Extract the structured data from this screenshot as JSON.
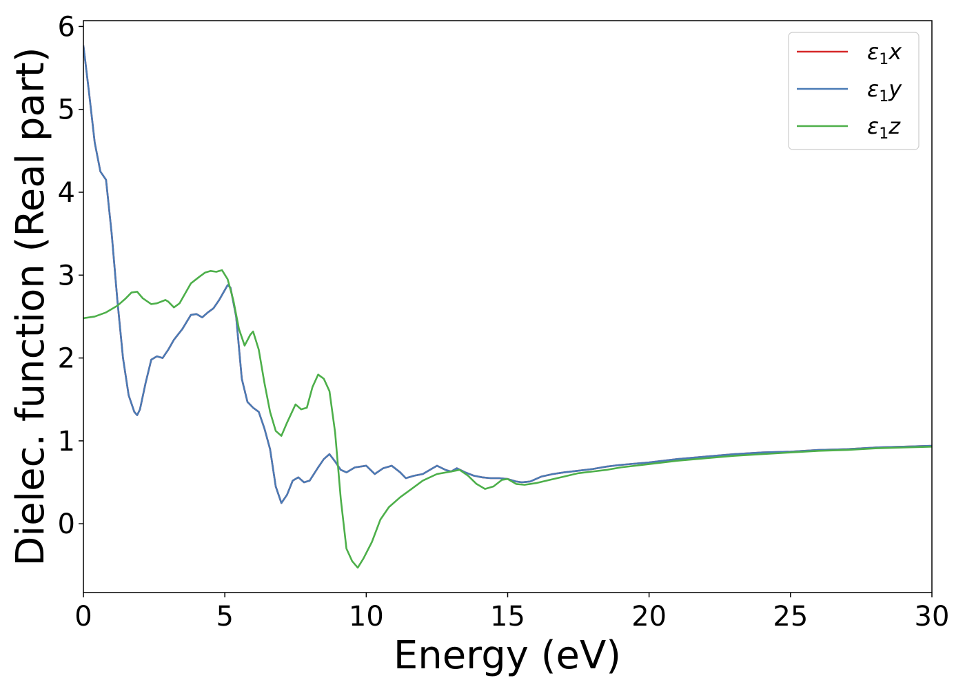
{
  "chart_data": {
    "type": "line",
    "title": "",
    "xlabel": "Energy (eV)",
    "ylabel": "Dielec. function (Real part)",
    "xlim": [
      0,
      30
    ],
    "ylim": [
      -0.83,
      6.07
    ],
    "x_ticks": [
      0,
      5,
      10,
      15,
      20,
      25,
      30
    ],
    "y_ticks": [
      0,
      1,
      2,
      3,
      4,
      5,
      6
    ],
    "grid": false,
    "legend_position": "top-right",
    "series": [
      {
        "name": "ε1x",
        "legend_main": "ε",
        "legend_sub": "1",
        "legend_var": "x",
        "color": "#d62728",
        "points": [
          [
            0,
            5.77
          ],
          [
            0.2,
            5.2
          ],
          [
            0.4,
            4.6
          ],
          [
            0.6,
            4.25
          ],
          [
            0.8,
            4.15
          ],
          [
            1.0,
            3.5
          ],
          [
            1.2,
            2.7
          ],
          [
            1.4,
            2.0
          ],
          [
            1.6,
            1.55
          ],
          [
            1.8,
            1.35
          ],
          [
            1.9,
            1.31
          ],
          [
            2.0,
            1.38
          ],
          [
            2.2,
            1.7
          ],
          [
            2.4,
            1.98
          ],
          [
            2.6,
            2.02
          ],
          [
            2.8,
            2.0
          ],
          [
            3.0,
            2.1
          ],
          [
            3.2,
            2.22
          ],
          [
            3.5,
            2.35
          ],
          [
            3.8,
            2.52
          ],
          [
            4.0,
            2.53
          ],
          [
            4.2,
            2.49
          ],
          [
            4.4,
            2.55
          ],
          [
            4.6,
            2.6
          ],
          [
            4.8,
            2.7
          ],
          [
            5.0,
            2.82
          ],
          [
            5.1,
            2.88
          ],
          [
            5.2,
            2.85
          ],
          [
            5.4,
            2.5
          ],
          [
            5.6,
            1.75
          ],
          [
            5.8,
            1.47
          ],
          [
            6.0,
            1.4
          ],
          [
            6.2,
            1.35
          ],
          [
            6.4,
            1.15
          ],
          [
            6.6,
            0.9
          ],
          [
            6.8,
            0.45
          ],
          [
            7.0,
            0.25
          ],
          [
            7.2,
            0.35
          ],
          [
            7.4,
            0.52
          ],
          [
            7.6,
            0.56
          ],
          [
            7.8,
            0.5
          ],
          [
            8.0,
            0.52
          ],
          [
            8.3,
            0.68
          ],
          [
            8.5,
            0.78
          ],
          [
            8.7,
            0.84
          ],
          [
            8.9,
            0.75
          ],
          [
            9.1,
            0.65
          ],
          [
            9.3,
            0.62
          ],
          [
            9.6,
            0.68
          ],
          [
            10.0,
            0.7
          ],
          [
            10.3,
            0.6
          ],
          [
            10.6,
            0.67
          ],
          [
            10.9,
            0.7
          ],
          [
            11.2,
            0.62
          ],
          [
            11.4,
            0.55
          ],
          [
            11.7,
            0.58
          ],
          [
            12.0,
            0.6
          ],
          [
            12.3,
            0.66
          ],
          [
            12.5,
            0.7
          ],
          [
            12.8,
            0.65
          ],
          [
            13.0,
            0.63
          ],
          [
            13.2,
            0.67
          ],
          [
            13.5,
            0.62
          ],
          [
            13.8,
            0.58
          ],
          [
            14.1,
            0.56
          ],
          [
            14.4,
            0.55
          ],
          [
            14.7,
            0.55
          ],
          [
            15.0,
            0.54
          ],
          [
            15.3,
            0.51
          ],
          [
            15.5,
            0.5
          ],
          [
            15.8,
            0.51
          ],
          [
            16.2,
            0.57
          ],
          [
            16.6,
            0.6
          ],
          [
            17.0,
            0.62
          ],
          [
            17.5,
            0.64
          ],
          [
            18.0,
            0.66
          ],
          [
            18.5,
            0.69
          ],
          [
            19.0,
            0.71
          ],
          [
            20.0,
            0.74
          ],
          [
            21.0,
            0.78
          ],
          [
            22.0,
            0.81
          ],
          [
            23.0,
            0.84
          ],
          [
            24.0,
            0.86
          ],
          [
            25.0,
            0.87
          ],
          [
            26.0,
            0.89
          ],
          [
            27.0,
            0.9
          ],
          [
            28.0,
            0.92
          ],
          [
            29.0,
            0.93
          ],
          [
            30.0,
            0.94
          ]
        ]
      },
      {
        "name": "ε1y",
        "legend_main": "ε",
        "legend_sub": "1",
        "legend_var": "y",
        "color": "#4a7bb5",
        "points": [
          [
            0,
            5.77
          ],
          [
            0.2,
            5.2
          ],
          [
            0.4,
            4.6
          ],
          [
            0.6,
            4.25
          ],
          [
            0.8,
            4.15
          ],
          [
            1.0,
            3.5
          ],
          [
            1.2,
            2.7
          ],
          [
            1.4,
            2.0
          ],
          [
            1.6,
            1.55
          ],
          [
            1.8,
            1.35
          ],
          [
            1.9,
            1.31
          ],
          [
            2.0,
            1.38
          ],
          [
            2.2,
            1.7
          ],
          [
            2.4,
            1.98
          ],
          [
            2.6,
            2.02
          ],
          [
            2.8,
            2.0
          ],
          [
            3.0,
            2.1
          ],
          [
            3.2,
            2.22
          ],
          [
            3.5,
            2.35
          ],
          [
            3.8,
            2.52
          ],
          [
            4.0,
            2.53
          ],
          [
            4.2,
            2.49
          ],
          [
            4.4,
            2.55
          ],
          [
            4.6,
            2.6
          ],
          [
            4.8,
            2.7
          ],
          [
            5.0,
            2.82
          ],
          [
            5.1,
            2.88
          ],
          [
            5.2,
            2.85
          ],
          [
            5.4,
            2.5
          ],
          [
            5.6,
            1.75
          ],
          [
            5.8,
            1.47
          ],
          [
            6.0,
            1.4
          ],
          [
            6.2,
            1.35
          ],
          [
            6.4,
            1.15
          ],
          [
            6.6,
            0.9
          ],
          [
            6.8,
            0.45
          ],
          [
            7.0,
            0.25
          ],
          [
            7.2,
            0.35
          ],
          [
            7.4,
            0.52
          ],
          [
            7.6,
            0.56
          ],
          [
            7.8,
            0.5
          ],
          [
            8.0,
            0.52
          ],
          [
            8.3,
            0.68
          ],
          [
            8.5,
            0.78
          ],
          [
            8.7,
            0.84
          ],
          [
            8.9,
            0.75
          ],
          [
            9.1,
            0.65
          ],
          [
            9.3,
            0.62
          ],
          [
            9.6,
            0.68
          ],
          [
            10.0,
            0.7
          ],
          [
            10.3,
            0.6
          ],
          [
            10.6,
            0.67
          ],
          [
            10.9,
            0.7
          ],
          [
            11.2,
            0.62
          ],
          [
            11.4,
            0.55
          ],
          [
            11.7,
            0.58
          ],
          [
            12.0,
            0.6
          ],
          [
            12.3,
            0.66
          ],
          [
            12.5,
            0.7
          ],
          [
            12.8,
            0.65
          ],
          [
            13.0,
            0.63
          ],
          [
            13.2,
            0.67
          ],
          [
            13.5,
            0.62
          ],
          [
            13.8,
            0.58
          ],
          [
            14.1,
            0.56
          ],
          [
            14.4,
            0.55
          ],
          [
            14.7,
            0.55
          ],
          [
            15.0,
            0.54
          ],
          [
            15.3,
            0.51
          ],
          [
            15.5,
            0.5
          ],
          [
            15.8,
            0.51
          ],
          [
            16.2,
            0.57
          ],
          [
            16.6,
            0.6
          ],
          [
            17.0,
            0.62
          ],
          [
            17.5,
            0.64
          ],
          [
            18.0,
            0.66
          ],
          [
            18.5,
            0.69
          ],
          [
            19.0,
            0.71
          ],
          [
            20.0,
            0.74
          ],
          [
            21.0,
            0.78
          ],
          [
            22.0,
            0.81
          ],
          [
            23.0,
            0.84
          ],
          [
            24.0,
            0.86
          ],
          [
            25.0,
            0.87
          ],
          [
            26.0,
            0.89
          ],
          [
            27.0,
            0.9
          ],
          [
            28.0,
            0.92
          ],
          [
            29.0,
            0.93
          ],
          [
            30.0,
            0.94
          ]
        ]
      },
      {
        "name": "ε1z",
        "legend_main": "ε",
        "legend_sub": "1",
        "legend_var": "z",
        "color": "#4daf4a",
        "points": [
          [
            0,
            2.48
          ],
          [
            0.4,
            2.5
          ],
          [
            0.8,
            2.55
          ],
          [
            1.2,
            2.63
          ],
          [
            1.5,
            2.72
          ],
          [
            1.7,
            2.79
          ],
          [
            1.9,
            2.8
          ],
          [
            2.1,
            2.72
          ],
          [
            2.4,
            2.65
          ],
          [
            2.6,
            2.66
          ],
          [
            2.9,
            2.7
          ],
          [
            3.0,
            2.68
          ],
          [
            3.2,
            2.61
          ],
          [
            3.4,
            2.66
          ],
          [
            3.6,
            2.78
          ],
          [
            3.8,
            2.9
          ],
          [
            4.1,
            2.98
          ],
          [
            4.3,
            3.03
          ],
          [
            4.5,
            3.05
          ],
          [
            4.7,
            3.04
          ],
          [
            4.9,
            3.06
          ],
          [
            5.1,
            2.95
          ],
          [
            5.3,
            2.7
          ],
          [
            5.5,
            2.35
          ],
          [
            5.7,
            2.15
          ],
          [
            5.9,
            2.28
          ],
          [
            6.0,
            2.32
          ],
          [
            6.2,
            2.1
          ],
          [
            6.4,
            1.7
          ],
          [
            6.6,
            1.35
          ],
          [
            6.8,
            1.12
          ],
          [
            7.0,
            1.06
          ],
          [
            7.2,
            1.22
          ],
          [
            7.5,
            1.44
          ],
          [
            7.7,
            1.38
          ],
          [
            7.9,
            1.4
          ],
          [
            8.1,
            1.65
          ],
          [
            8.3,
            1.8
          ],
          [
            8.5,
            1.75
          ],
          [
            8.7,
            1.6
          ],
          [
            8.9,
            1.1
          ],
          [
            9.1,
            0.3
          ],
          [
            9.3,
            -0.3
          ],
          [
            9.5,
            -0.45
          ],
          [
            9.7,
            -0.53
          ],
          [
            9.9,
            -0.42
          ],
          [
            10.2,
            -0.22
          ],
          [
            10.5,
            0.05
          ],
          [
            10.8,
            0.2
          ],
          [
            11.2,
            0.32
          ],
          [
            11.6,
            0.42
          ],
          [
            12.0,
            0.52
          ],
          [
            12.5,
            0.6
          ],
          [
            13.0,
            0.63
          ],
          [
            13.3,
            0.65
          ],
          [
            13.6,
            0.58
          ],
          [
            13.9,
            0.48
          ],
          [
            14.2,
            0.42
          ],
          [
            14.5,
            0.45
          ],
          [
            14.8,
            0.53
          ],
          [
            15.0,
            0.54
          ],
          [
            15.3,
            0.48
          ],
          [
            15.6,
            0.47
          ],
          [
            16.0,
            0.49
          ],
          [
            16.5,
            0.53
          ],
          [
            17.0,
            0.57
          ],
          [
            17.5,
            0.61
          ],
          [
            18.0,
            0.63
          ],
          [
            18.5,
            0.65
          ],
          [
            19.0,
            0.68
          ],
          [
            20.0,
            0.72
          ],
          [
            21.0,
            0.76
          ],
          [
            22.0,
            0.79
          ],
          [
            23.0,
            0.82
          ],
          [
            24.0,
            0.84
          ],
          [
            25.0,
            0.86
          ],
          [
            26.0,
            0.88
          ],
          [
            27.0,
            0.89
          ],
          [
            28.0,
            0.91
          ],
          [
            29.0,
            0.92
          ],
          [
            30.0,
            0.93
          ]
        ]
      }
    ]
  }
}
